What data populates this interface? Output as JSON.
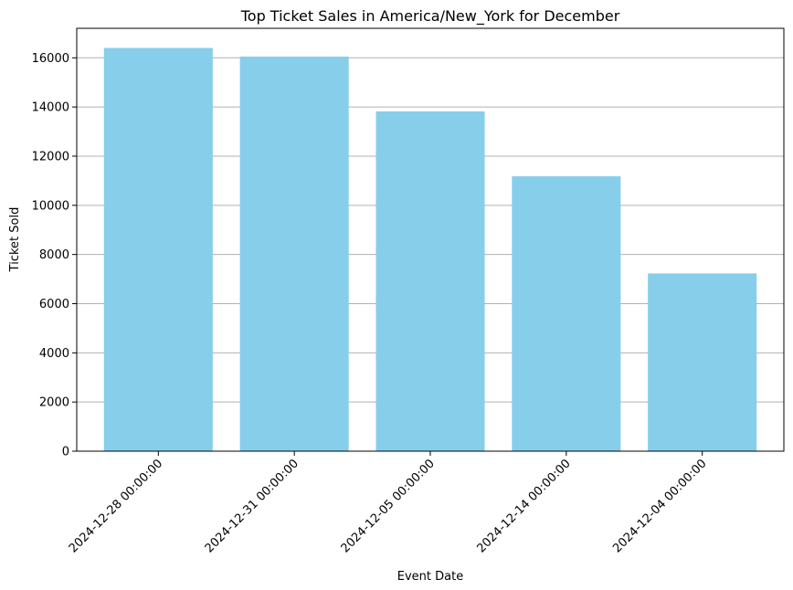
{
  "chart_data": {
    "type": "bar",
    "title": "Top Ticket Sales in America/New_York for December",
    "xlabel": "Event Date",
    "ylabel": "Ticket Sold",
    "categories": [
      "2024-12-28 00:00:00",
      "2024-12-31 00:00:00",
      "2024-12-05 00:00:00",
      "2024-12-14 00:00:00",
      "2024-12-04 00:00:00"
    ],
    "values": [
      16400,
      16050,
      13820,
      11180,
      7230
    ],
    "ylim": [
      0,
      17200
    ],
    "yticks": [
      0,
      2000,
      4000,
      6000,
      8000,
      10000,
      12000,
      14000,
      16000
    ],
    "ytick_labels": [
      "0",
      "2000",
      "4000",
      "6000",
      "8000",
      "10000",
      "12000",
      "14000",
      "16000"
    ],
    "grid": "y",
    "bar_color": "#87ceeb",
    "grid_color": "#b0b0b0"
  }
}
